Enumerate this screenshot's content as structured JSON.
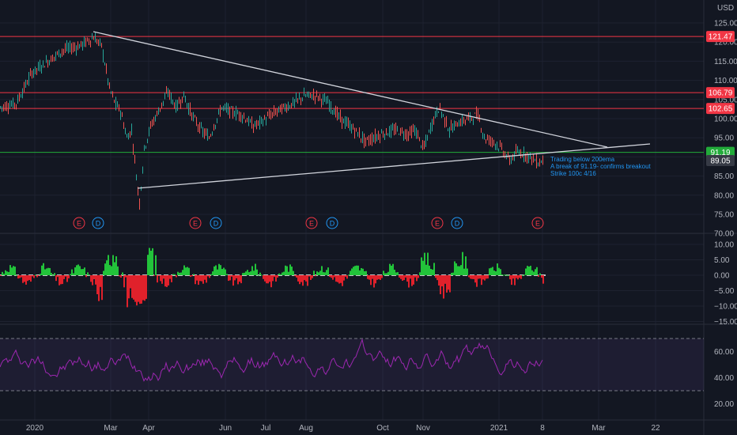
{
  "currency": "USD",
  "colors": {
    "background": "#131722",
    "grid": "#1e2230",
    "candle_up": "#26a69a",
    "candle_down": "#ef5350",
    "resistance_line": "#f23645",
    "breakout_line": "#22ab3a",
    "trendline": "#d1d4dc",
    "note_text": "#2196f3",
    "histogram_up": "#22c33a",
    "histogram_down": "#e0212b",
    "rsi_line": "#9c27b0",
    "rsi_band": "#7e57c2"
  },
  "price_axis": {
    "ticks": [
      "125.00",
      "120.00",
      "115.00",
      "110.00",
      "105.00",
      "100.00",
      "95.00",
      "90.00",
      "85.00",
      "80.00",
      "75.00",
      "70.00"
    ]
  },
  "price_tags": [
    {
      "text": "121.47",
      "value": 121.47,
      "kind": "resistance"
    },
    {
      "text": "106.79",
      "value": 106.79,
      "kind": "resistance"
    },
    {
      "text": "102.65",
      "value": 102.65,
      "kind": "resistance"
    },
    {
      "text": "91.19",
      "value": 91.19,
      "kind": "breakout"
    },
    {
      "text": "89.05",
      "value": 89.05,
      "kind": "last"
    }
  ],
  "note_lines": [
    "Trading below 200ema",
    "A break of 91.19- confirms breakout",
    "Strike 100c 4/16"
  ],
  "event_markers": [
    "E",
    "D",
    "E",
    "D",
    "E",
    "D",
    "E",
    "D",
    "E"
  ],
  "oscillator_axis": {
    "ticks": [
      "10.00",
      "5.00",
      "0.00",
      "−5.00",
      "−10.00",
      "−15.00"
    ]
  },
  "rsi_axis": {
    "ticks": [
      "60.00",
      "40.00",
      "20.00"
    ]
  },
  "time_axis": {
    "labels": [
      "2020",
      "Mar",
      "Apr",
      "Jun",
      "Jul",
      "Aug",
      "Oct",
      "Nov",
      "2021",
      "8",
      "Mar",
      "22"
    ]
  }
}
